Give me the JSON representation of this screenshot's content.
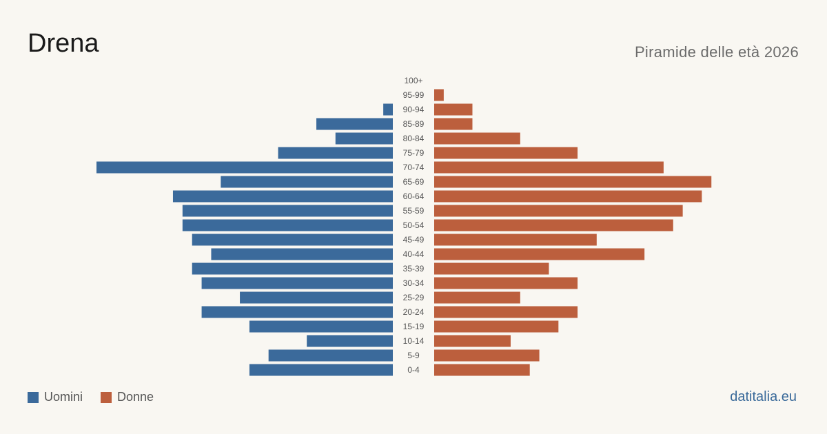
{
  "title": "Drena",
  "subtitle": "Piramide delle età 2026",
  "source": "datitalia.eu",
  "colors": {
    "men": "#3b6a9b",
    "women": "#bc5f3d"
  },
  "legend": [
    {
      "label": "Uomini",
      "color": "#3b6a9b"
    },
    {
      "label": "Donne",
      "color": "#bc5f3d"
    }
  ],
  "chart_data": {
    "type": "bar",
    "orientation": "horizontal-pyramid",
    "categories": [
      "0-4",
      "5-9",
      "10-14",
      "15-19",
      "20-24",
      "25-29",
      "30-34",
      "35-39",
      "40-44",
      "45-49",
      "50-54",
      "55-59",
      "60-64",
      "65-69",
      "70-74",
      "75-79",
      "80-84",
      "85-89",
      "90-94",
      "95-99",
      "100+"
    ],
    "series": [
      {
        "name": "Uomini",
        "values": [
          15,
          13,
          9,
          15,
          20,
          16,
          20,
          21,
          19,
          21,
          22,
          22,
          23,
          18,
          31,
          12,
          6,
          8,
          1,
          0,
          0
        ]
      },
      {
        "name": "Donne",
        "values": [
          10,
          11,
          8,
          13,
          15,
          9,
          15,
          12,
          22,
          17,
          25,
          26,
          28,
          29,
          24,
          15,
          9,
          4,
          4,
          1,
          0
        ]
      }
    ],
    "xmax": 31
  }
}
